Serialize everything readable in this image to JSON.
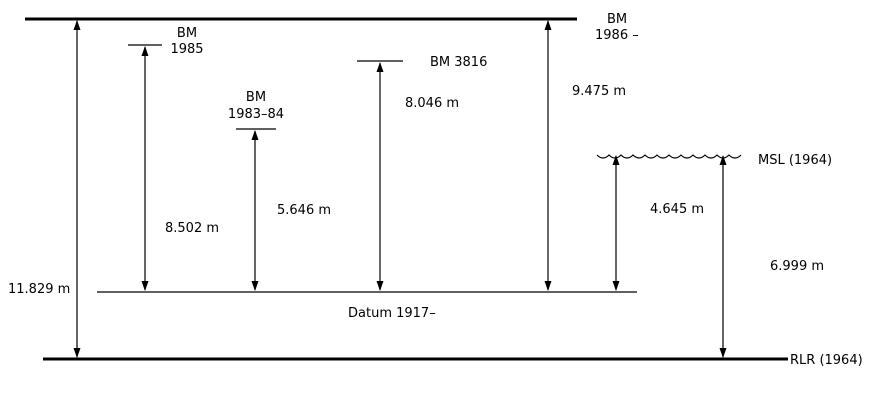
{
  "benchmarks": {
    "bm_1986": {
      "line1": "BM",
      "line2": "1986 –"
    },
    "bm_1985": {
      "line1": "BM",
      "line2": "1985"
    },
    "bm_1983_84": {
      "line1": "BM",
      "line2": "1983–84"
    },
    "bm_3816": {
      "label": "BM 3816"
    }
  },
  "measurements": {
    "m_11829": "11.829 m",
    "m_8502": "8.502 m",
    "m_5646": "5.646 m",
    "m_8046": "8.046 m",
    "m_9475": "9.475 m",
    "m_4645": "4.645 m",
    "m_6999": "6.999 m"
  },
  "levels": {
    "msl": "MSL (1964)",
    "datum": "Datum 1917–",
    "rlr": "RLR (1964)"
  }
}
